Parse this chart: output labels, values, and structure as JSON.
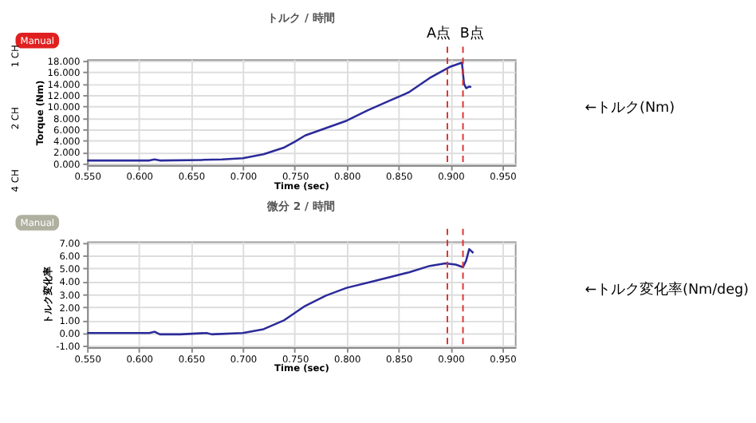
{
  "chart_data": [
    {
      "type": "line",
      "title": "トルク / 時間",
      "xlabel": "Time (sec)",
      "ylabel": "Torque (Nm)",
      "x": [
        0.55,
        0.58,
        0.61,
        0.615,
        0.62,
        0.66,
        0.68,
        0.7,
        0.72,
        0.74,
        0.75,
        0.76,
        0.78,
        0.8,
        0.82,
        0.84,
        0.86,
        0.88,
        0.9,
        0.911,
        0.913,
        0.915,
        0.918,
        0.92
      ],
      "series": [
        {
          "color": "#2b2b9a",
          "values": [
            0.5,
            0.5,
            0.5,
            0.7,
            0.5,
            0.6,
            0.7,
            0.9,
            1.6,
            2.8,
            3.8,
            4.9,
            6.2,
            7.5,
            9.3,
            10.9,
            12.5,
            15.0,
            17.0,
            17.7,
            14.0,
            13.2,
            13.5,
            13.4
          ]
        }
      ],
      "xlim": [
        0.55,
        0.962
      ],
      "xticks": [
        {
          "value": 0.55,
          "label": "0.550"
        },
        {
          "value": 0.6,
          "label": "0.600"
        },
        {
          "value": 0.65,
          "label": "0.650"
        },
        {
          "value": 0.7,
          "label": "0.700"
        },
        {
          "value": 0.75,
          "label": "0.750"
        },
        {
          "value": 0.8,
          "label": "0.800"
        },
        {
          "value": 0.85,
          "label": "0.850"
        },
        {
          "value": 0.9,
          "label": "0.900"
        },
        {
          "value": 0.95,
          "label": "0.950"
        }
      ],
      "ylim": [
        -0.3,
        18.3
      ],
      "yticks": [
        {
          "value": 0,
          "label": "0.000"
        },
        {
          "value": 2,
          "label": "2.000"
        },
        {
          "value": 4,
          "label": "4.000"
        },
        {
          "value": 6,
          "label": "6.000"
        },
        {
          "value": 8,
          "label": "8.000"
        },
        {
          "value": 10,
          "label": "10.000"
        },
        {
          "value": 12,
          "label": "12.000"
        },
        {
          "value": 14,
          "label": "14.000"
        },
        {
          "value": 16,
          "label": "16.000"
        },
        {
          "value": 18,
          "label": "18.000"
        }
      ],
      "grid": true,
      "line_style": "solid",
      "marker": "none",
      "ref_lines": [
        {
          "axis": "x",
          "value": 0.897,
          "label": "A点",
          "color": "#e03030",
          "line_style": "dashed"
        },
        {
          "axis": "x",
          "value": 0.912,
          "label": "B点",
          "color": "#e03030",
          "line_style": "dashed"
        }
      ],
      "annotations": [
        "←トルク(Nm)",
        "Manual",
        "1 CH",
        "2 CH",
        "4 CH"
      ]
    },
    {
      "type": "line",
      "title": "微分 2 / 時間",
      "xlabel": "Time (sec)",
      "ylabel": "トルク変化率",
      "x": [
        0.55,
        0.58,
        0.61,
        0.615,
        0.62,
        0.64,
        0.665,
        0.67,
        0.7,
        0.72,
        0.74,
        0.76,
        0.78,
        0.8,
        0.82,
        0.84,
        0.86,
        0.88,
        0.895,
        0.905,
        0.912,
        0.915,
        0.918,
        0.922
      ],
      "series": [
        {
          "color": "#2b2b9a",
          "values": [
            0,
            0,
            0,
            0.1,
            -0.1,
            -0.1,
            0.0,
            -0.1,
            0.0,
            0.3,
            1.0,
            2.1,
            2.9,
            3.5,
            3.9,
            4.3,
            4.7,
            5.2,
            5.4,
            5.3,
            5.1,
            5.6,
            6.5,
            6.2
          ]
        }
      ],
      "xlim": [
        0.55,
        0.962
      ],
      "xticks": [
        {
          "value": 0.55,
          "label": "0.550"
        },
        {
          "value": 0.6,
          "label": "0.600"
        },
        {
          "value": 0.65,
          "label": "0.650"
        },
        {
          "value": 0.7,
          "label": "0.700"
        },
        {
          "value": 0.75,
          "label": "0.750"
        },
        {
          "value": 0.8,
          "label": "0.800"
        },
        {
          "value": 0.85,
          "label": "0.850"
        },
        {
          "value": 0.9,
          "label": "0.900"
        },
        {
          "value": 0.95,
          "label": "0.950"
        }
      ],
      "ylim": [
        -1.1,
        7.1
      ],
      "yticks": [
        {
          "value": -1,
          "label": "-1.00"
        },
        {
          "value": 0,
          "label": "0.00"
        },
        {
          "value": 1,
          "label": "1.00"
        },
        {
          "value": 2,
          "label": "2.00"
        },
        {
          "value": 3,
          "label": "3.00"
        },
        {
          "value": 4,
          "label": "4.00"
        },
        {
          "value": 5,
          "label": "5.00"
        },
        {
          "value": 6,
          "label": "6.00"
        },
        {
          "value": 7,
          "label": "7.00"
        }
      ],
      "grid": true,
      "line_style": "solid",
      "marker": "none",
      "ref_lines": [
        {
          "axis": "x",
          "value": 0.897,
          "color": "#e03030",
          "line_style": "dashed"
        },
        {
          "axis": "x",
          "value": 0.912,
          "color": "#e03030",
          "line_style": "dashed"
        }
      ],
      "annotations": [
        "←トルク変化率(Nm/deg)",
        "Manual"
      ]
    }
  ]
}
